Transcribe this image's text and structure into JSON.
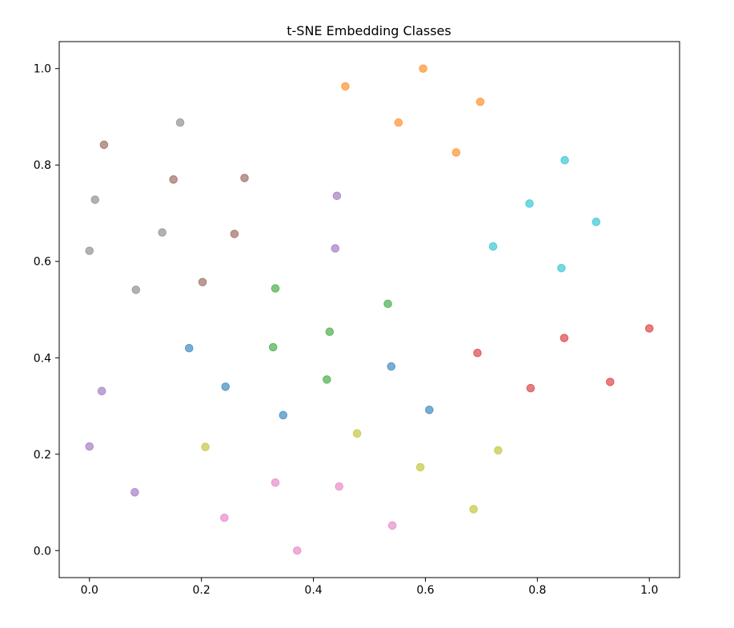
{
  "chart_data": {
    "type": "scatter",
    "title": "t-SNE Embedding Classes",
    "xlabel": "",
    "ylabel": "",
    "xlim": [
      -0.054,
      1.054
    ],
    "ylim": [
      -0.056,
      1.056
    ],
    "xticks": [
      0.0,
      0.2,
      0.4,
      0.6,
      0.8,
      1.0
    ],
    "yticks": [
      0.0,
      0.2,
      0.4,
      0.6,
      0.8,
      1.0
    ],
    "xtick_labels": [
      "0.0",
      "0.2",
      "0.4",
      "0.6",
      "0.8",
      "1.0"
    ],
    "ytick_labels": [
      "0.0",
      "0.2",
      "0.4",
      "0.6",
      "0.8",
      "1.0"
    ],
    "grid": false,
    "series": [
      {
        "color": "#1f77b4",
        "points": [
          {
            "x": 0.178,
            "y": 0.42
          },
          {
            "x": 0.243,
            "y": 0.34
          },
          {
            "x": 0.346,
            "y": 0.281
          },
          {
            "x": 0.539,
            "y": 0.382
          },
          {
            "x": 0.607,
            "y": 0.292
          }
        ]
      },
      {
        "color": "#ff7f0e",
        "points": [
          {
            "x": 0.457,
            "y": 0.963
          },
          {
            "x": 0.596,
            "y": 1.0
          },
          {
            "x": 0.698,
            "y": 0.931
          },
          {
            "x": 0.552,
            "y": 0.888
          },
          {
            "x": 0.655,
            "y": 0.826
          }
        ]
      },
      {
        "color": "#2ca02c",
        "points": [
          {
            "x": 0.332,
            "y": 0.544
          },
          {
            "x": 0.328,
            "y": 0.422
          },
          {
            "x": 0.429,
            "y": 0.454
          },
          {
            "x": 0.424,
            "y": 0.355
          },
          {
            "x": 0.533,
            "y": 0.512
          }
        ]
      },
      {
        "color": "#d62728",
        "points": [
          {
            "x": 0.693,
            "y": 0.41
          },
          {
            "x": 0.788,
            "y": 0.337
          },
          {
            "x": 0.848,
            "y": 0.441
          },
          {
            "x": 0.93,
            "y": 0.35
          },
          {
            "x": 1.0,
            "y": 0.461
          }
        ]
      },
      {
        "color": "#9467bd",
        "points": [
          {
            "x": 0.442,
            "y": 0.736
          },
          {
            "x": 0.439,
            "y": 0.627
          },
          {
            "x": 0.022,
            "y": 0.331
          },
          {
            "x": 0.0,
            "y": 0.216
          },
          {
            "x": 0.081,
            "y": 0.121
          }
        ]
      },
      {
        "color": "#8c564b",
        "points": [
          {
            "x": 0.026,
            "y": 0.842
          },
          {
            "x": 0.15,
            "y": 0.77
          },
          {
            "x": 0.277,
            "y": 0.773
          },
          {
            "x": 0.259,
            "y": 0.657
          },
          {
            "x": 0.202,
            "y": 0.557
          }
        ]
      },
      {
        "color": "#e377c2",
        "points": [
          {
            "x": 0.332,
            "y": 0.141
          },
          {
            "x": 0.446,
            "y": 0.133
          },
          {
            "x": 0.241,
            "y": 0.068
          },
          {
            "x": 0.371,
            "y": 0.0
          },
          {
            "x": 0.541,
            "y": 0.052
          }
        ]
      },
      {
        "color": "#7f7f7f",
        "points": [
          {
            "x": 0.162,
            "y": 0.888
          },
          {
            "x": 0.01,
            "y": 0.728
          },
          {
            "x": 0.13,
            "y": 0.66
          },
          {
            "x": 0.0,
            "y": 0.622
          },
          {
            "x": 0.083,
            "y": 0.541
          }
        ]
      },
      {
        "color": "#bcbd22",
        "points": [
          {
            "x": 0.478,
            "y": 0.243
          },
          {
            "x": 0.207,
            "y": 0.215
          },
          {
            "x": 0.591,
            "y": 0.173
          },
          {
            "x": 0.73,
            "y": 0.208
          },
          {
            "x": 0.686,
            "y": 0.086
          }
        ]
      },
      {
        "color": "#17becf",
        "points": [
          {
            "x": 0.849,
            "y": 0.81
          },
          {
            "x": 0.786,
            "y": 0.72
          },
          {
            "x": 0.905,
            "y": 0.682
          },
          {
            "x": 0.721,
            "y": 0.631
          },
          {
            "x": 0.843,
            "y": 0.586
          }
        ]
      }
    ]
  }
}
